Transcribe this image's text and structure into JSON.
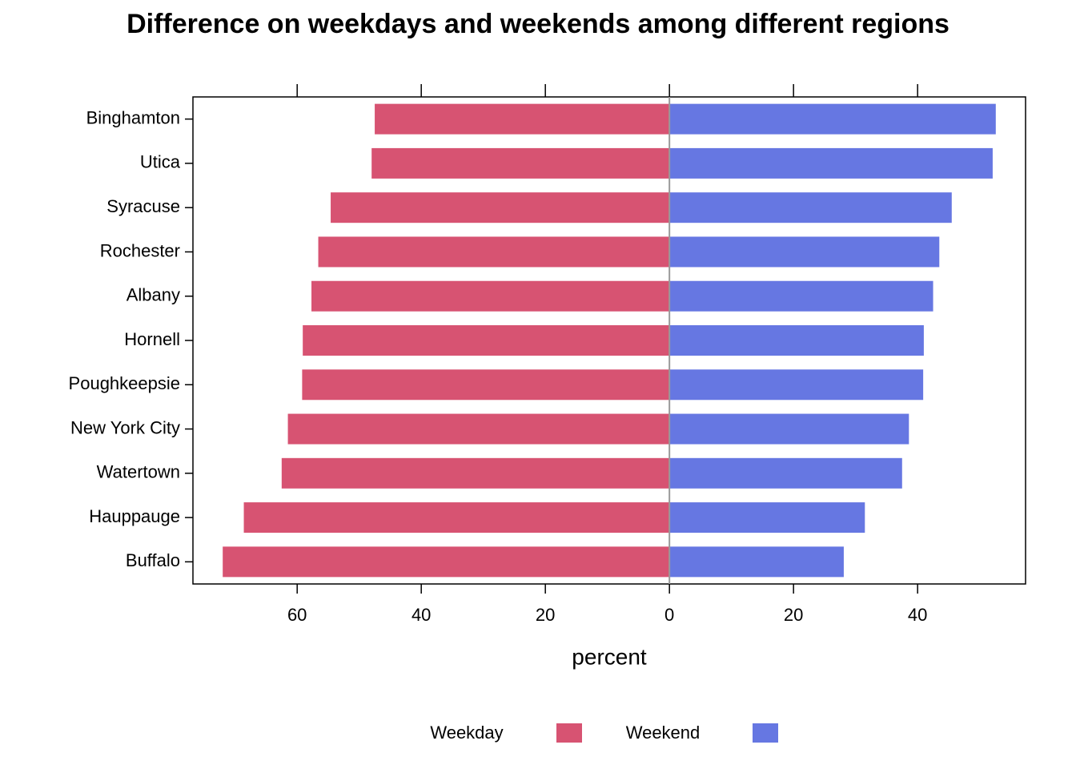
{
  "chart_data": {
    "type": "diverging-bar",
    "title": "Difference on weekdays and weekends among different regions",
    "xlabel": "percent",
    "categories": [
      "Binghamton",
      "Utica",
      "Syracuse",
      "Rochester",
      "Albany",
      "Hornell",
      "Poughkeepsie",
      "New York City",
      "Watertown",
      "Hauppauge",
      "Buffalo"
    ],
    "series": [
      {
        "name": "Weekday",
        "color": "#d75372",
        "values": [
          -47.5,
          -48.0,
          -54.6,
          -56.6,
          -57.7,
          -59.1,
          -59.2,
          -61.5,
          -62.5,
          -68.6,
          -72.0
        ]
      },
      {
        "name": "Weekend",
        "color": "#6677e2",
        "values": [
          52.6,
          52.1,
          45.5,
          43.5,
          42.5,
          41.0,
          40.9,
          38.6,
          37.5,
          31.5,
          28.1
        ]
      }
    ],
    "xlim": [
      -76.8,
      57.4
    ],
    "xticks": [
      {
        "value": -60,
        "label": "60"
      },
      {
        "value": -40,
        "label": "40"
      },
      {
        "value": -20,
        "label": "20"
      },
      0,
      20,
      40
    ],
    "legend": "bottom"
  }
}
